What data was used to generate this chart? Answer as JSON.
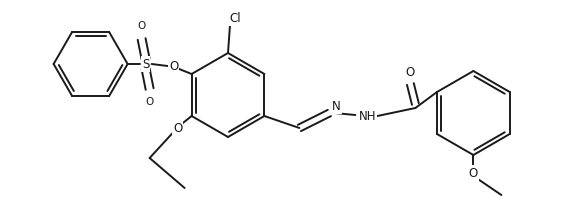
{
  "background_color": "#ffffff",
  "line_color": "#1a1a1a",
  "line_width": 1.4,
  "font_size": 8.5,
  "figsize": [
    5.62,
    1.98
  ],
  "dpi": 100,
  "xlim": [
    0,
    562
  ],
  "ylim": [
    0,
    198
  ]
}
